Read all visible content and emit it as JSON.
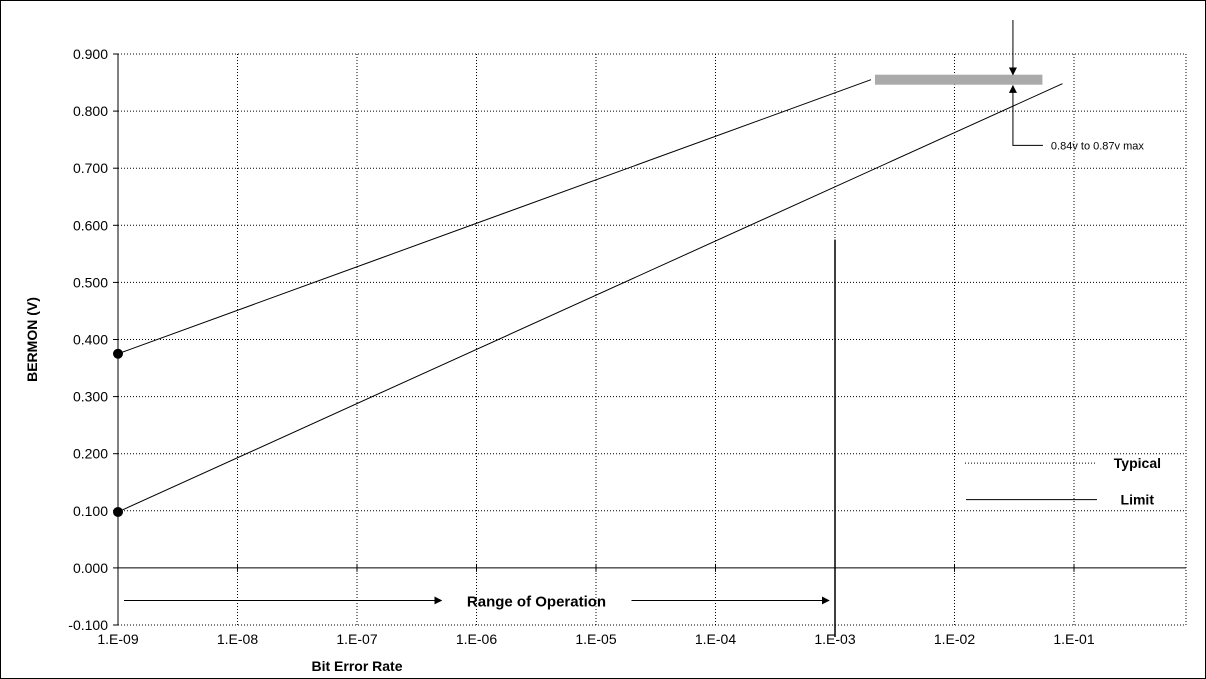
{
  "chart_data": {
    "type": "line",
    "xlabel": "Bit Error Rate",
    "ylabel": "BERMON (V)",
    "x_scale": "log",
    "xlim": [
      1e-09,
      1
    ],
    "ylim": [
      -0.1,
      0.9
    ],
    "x_ticks": [
      {
        "value": 1e-09,
        "label": "1.E-09"
      },
      {
        "value": 1e-08,
        "label": "1.E-08"
      },
      {
        "value": 1e-07,
        "label": "1.E-07"
      },
      {
        "value": 1e-06,
        "label": "1.E-06"
      },
      {
        "value": 1e-05,
        "label": "1.E-05"
      },
      {
        "value": 0.0001,
        "label": "1.E-04"
      },
      {
        "value": 0.001,
        "label": "1.E-03"
      },
      {
        "value": 0.01,
        "label": "1.E-02"
      },
      {
        "value": 0.1,
        "label": "1.E-01"
      }
    ],
    "y_ticks": [
      {
        "value": 0.9,
        "label": "0.900"
      },
      {
        "value": 0.8,
        "label": "0.800"
      },
      {
        "value": 0.7,
        "label": "0.700"
      },
      {
        "value": 0.6,
        "label": "0.600"
      },
      {
        "value": 0.5,
        "label": "0.500"
      },
      {
        "value": 0.4,
        "label": "0.400"
      },
      {
        "value": 0.3,
        "label": "0.300"
      },
      {
        "value": 0.2,
        "label": "0.200"
      },
      {
        "value": 0.1,
        "label": "0.100"
      },
      {
        "value": 0.0,
        "label": "0.000"
      },
      {
        "value": -0.1,
        "label": "-0.100"
      }
    ],
    "grid": true,
    "series": [
      {
        "style": "solid",
        "x": [
          1e-09,
          0.002
        ],
        "y": [
          0.375,
          0.855
        ]
      },
      {
        "style": "solid",
        "x": [
          1e-09,
          0.08
        ],
        "y": [
          0.098,
          0.848
        ]
      }
    ],
    "markers": [
      {
        "x": 1e-09,
        "y": 0.375
      },
      {
        "x": 1e-09,
        "y": 0.098
      }
    ],
    "max_band": {
      "x": [
        0.002,
        0.08
      ],
      "y": 0.855,
      "color": "#aaaaaa"
    },
    "vertical_line": {
      "x": 0.001,
      "y": [
        -0.1,
        0.575
      ]
    },
    "legend": {
      "position": "bottom-right",
      "entries": [
        {
          "label": "Typical",
          "style": "dotted"
        },
        {
          "label": "Limit",
          "style": "solid"
        }
      ]
    },
    "annotations": {
      "range_label": "Range of Operation",
      "range_x": [
        1e-09,
        0.001
      ],
      "range_y": -0.057,
      "max_note": "0.84v to 0.87v max",
      "max_note_x": 0.028
    }
  }
}
